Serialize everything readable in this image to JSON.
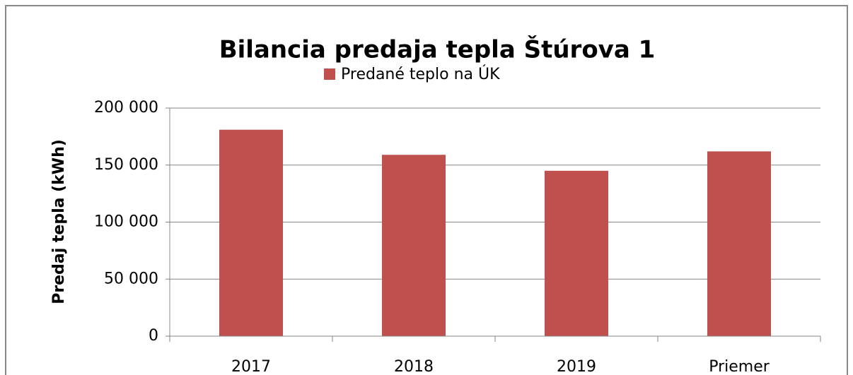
{
  "chart_data": {
    "type": "bar",
    "title": "Bilancia predaja tepla Štúrova 1",
    "ylabel": "Predaj tepla (kWh)",
    "legend_position": "top",
    "series": [
      {
        "name": "Predané teplo na ÚK",
        "color": "#c0504d",
        "values": [
          181000,
          159000,
          145000,
          162000
        ]
      }
    ],
    "categories": [
      "2017",
      "2018",
      "2019",
      "Priemer"
    ],
    "ylim": [
      0,
      200000
    ],
    "yticks": [
      0,
      {
        "value": 50000,
        "label": "50 000"
      },
      {
        "value": 100000,
        "label": "100 000"
      },
      {
        "value": 150000,
        "label": "150 000"
      },
      {
        "value": 200000,
        "label": "200 000"
      }
    ],
    "grid": true
  }
}
